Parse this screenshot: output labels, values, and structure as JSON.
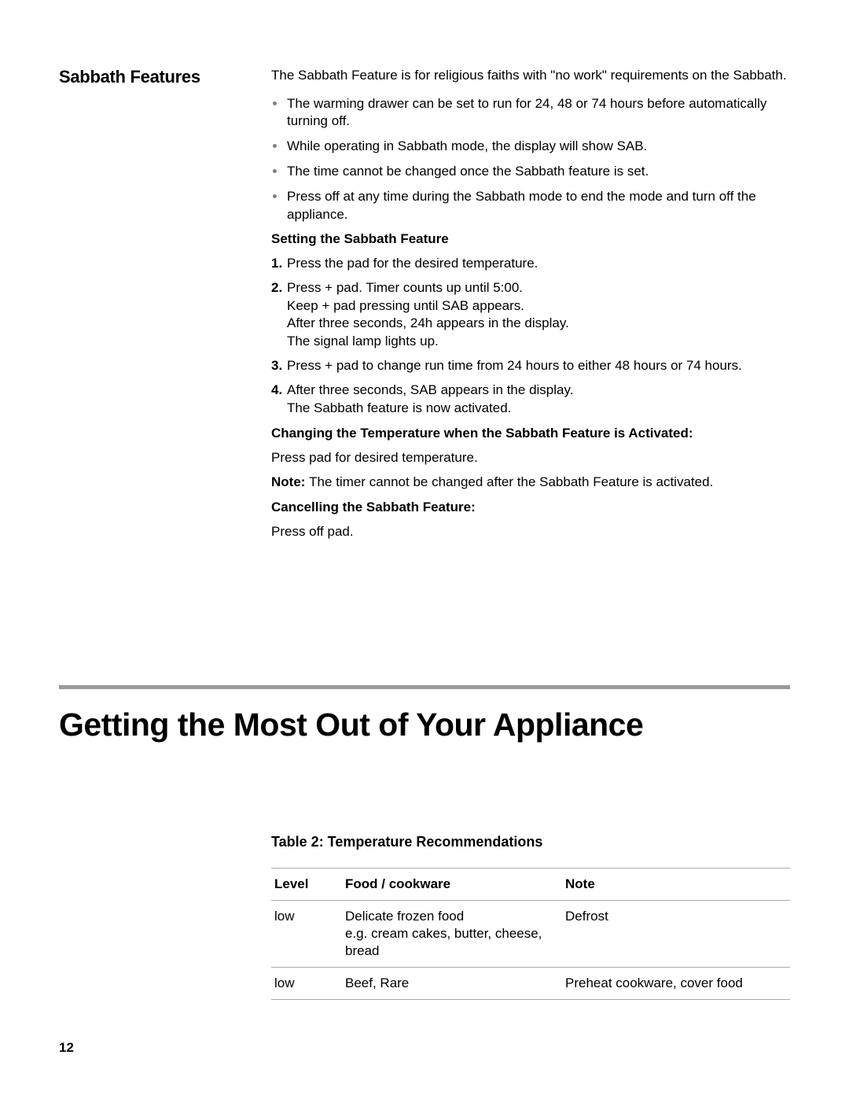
{
  "sabbath": {
    "heading": "Sabbath Features",
    "intro": "The Sabbath Feature is for religious faiths with \"no work\" requirements on the Sabbath.",
    "bullets": [
      "The warming drawer can be set to run for 24, 48 or 74 hours before automatically turning off.",
      "While operating in Sabbath mode, the display will show SAB.",
      "The time cannot be changed once the Sabbath feature is set.",
      "Press off at any time during the Sabbath mode to end the mode and turn off the appliance."
    ],
    "setting_heading": "Setting the Sabbath Feature",
    "steps": [
      "Press the pad for the desired temperature.",
      "Press + pad. Timer counts up until 5:00.\nKeep + pad pressing until SAB appears.\nAfter three seconds, 24h appears in the display.\nThe signal lamp lights up.",
      "Press + pad to change run time from 24 hours to either 48 hours or 74 hours.",
      "After three seconds, SAB appears in the display.\nThe Sabbath feature is now activated."
    ],
    "changing_heading": "Changing the Temperature when the Sabbath Feature is Activated:",
    "changing_text": "Press pad for desired temperature.",
    "note_label": "Note:  ",
    "note_text": "The timer cannot be changed after the Sabbath Feature is activated.",
    "cancel_heading": "Cancelling the Sabbath Feature:",
    "cancel_text": "Press off pad."
  },
  "main_heading": "Getting the Most Out of Your Appliance",
  "table": {
    "title": "Table 2: Temperature Recommendations",
    "columns": [
      "Level",
      "Food / cookware",
      "Note"
    ],
    "rows": [
      [
        "low",
        "Delicate frozen food\ne.g. cream cakes, butter, cheese, bread",
        "Defrost"
      ],
      [
        "low",
        "Beef, Rare",
        "Preheat cookware, cover food"
      ]
    ]
  },
  "page_number": "12"
}
